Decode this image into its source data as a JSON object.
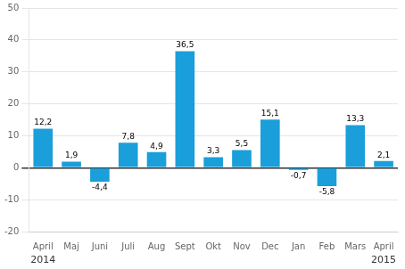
{
  "chart_data": {
    "type": "bar",
    "categories": [
      "April",
      "Maj",
      "Juni",
      "Juli",
      "Aug",
      "Sept",
      "Okt",
      "Nov",
      "Dec",
      "Jan",
      "Feb",
      "Mars",
      "April"
    ],
    "values": [
      12.2,
      1.9,
      -4.4,
      7.8,
      4.9,
      36.5,
      3.3,
      5.5,
      15.1,
      -0.7,
      -5.8,
      13.3,
      2.1
    ],
    "value_labels": [
      "12,2",
      "1,9",
      "-4,4",
      "7,8",
      "4,9",
      "36,5",
      "3,3",
      "5,5",
      "15,1",
      "-0,7",
      "-5,8",
      "13,3",
      "2,1"
    ],
    "data_labels": true,
    "color": "#1a9fda",
    "ylim": [
      -20,
      50
    ],
    "yticks": [
      -20,
      -10,
      0,
      10,
      20,
      30,
      40,
      50
    ],
    "grid": true,
    "annotations": [
      {
        "text": "2014",
        "x": 0
      },
      {
        "text": "2015",
        "x": 12
      }
    ]
  }
}
